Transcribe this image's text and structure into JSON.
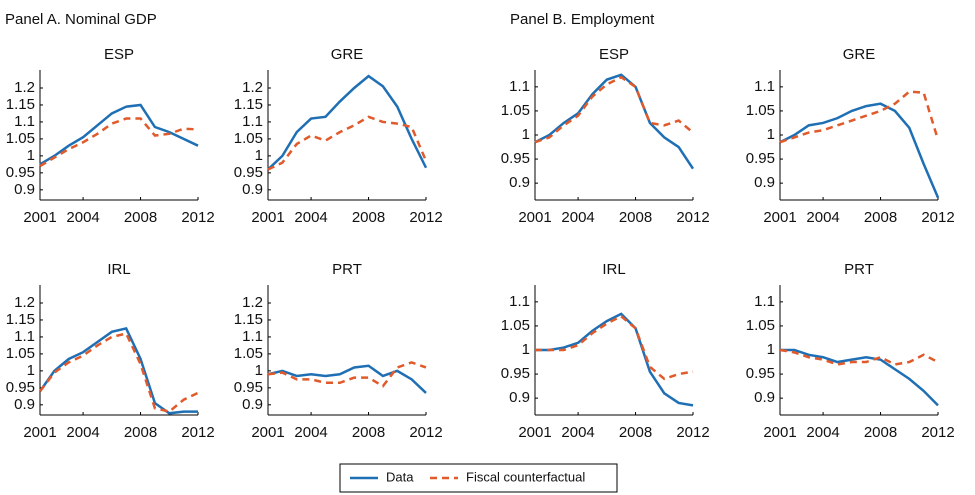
{
  "panels": [
    {
      "title": "Panel A. Nominal GDP"
    },
    {
      "title": "Panel B. Employment"
    }
  ],
  "chart_data": [
    {
      "type": "line",
      "title": "ESP",
      "x": [
        2001,
        2002,
        2003,
        2004,
        2005,
        2006,
        2007,
        2008,
        2009,
        2010,
        2011,
        2012
      ],
      "xlim": [
        2001,
        2012
      ],
      "xticks": [
        2001,
        2004,
        2008,
        2012
      ],
      "ylim": [
        0.87,
        1.253
      ],
      "yticks": [
        0.9,
        0.95,
        1,
        1.05,
        1.1,
        1.15,
        1.2
      ],
      "series": [
        {
          "name": "Data",
          "color": "#1f6fb4",
          "values": [
            0.975,
            1.0,
            1.03,
            1.055,
            1.09,
            1.125,
            1.145,
            1.15,
            1.085,
            1.07,
            1.05,
            1.03
          ]
        },
        {
          "name": "Fiscal counterfactual",
          "color": "#e05a2b",
          "dashed": true,
          "values": [
            0.97,
            0.995,
            1.02,
            1.04,
            1.065,
            1.095,
            1.11,
            1.11,
            1.06,
            1.065,
            1.08,
            1.078
          ]
        }
      ]
    },
    {
      "type": "line",
      "title": "GRE",
      "x": [
        2001,
        2002,
        2003,
        2004,
        2005,
        2006,
        2007,
        2008,
        2009,
        2010,
        2011,
        2012
      ],
      "xlim": [
        2001,
        2012
      ],
      "xticks": [
        2001,
        2004,
        2008,
        2012
      ],
      "ylim": [
        0.87,
        1.253
      ],
      "yticks": [
        0.9,
        0.95,
        1,
        1.05,
        1.1,
        1.15,
        1.2
      ],
      "series": [
        {
          "name": "Data",
          "color": "#1f6fb4",
          "values": [
            0.96,
            1.0,
            1.07,
            1.11,
            1.115,
            1.16,
            1.2,
            1.235,
            1.205,
            1.145,
            1.05,
            0.965
          ]
        },
        {
          "name": "Fiscal counterfactual",
          "color": "#e05a2b",
          "dashed": true,
          "values": [
            0.96,
            0.98,
            1.035,
            1.06,
            1.045,
            1.07,
            1.09,
            1.115,
            1.1,
            1.095,
            1.085,
            0.985
          ]
        }
      ]
    },
    {
      "type": "line",
      "title": "IRL",
      "x": [
        2001,
        2002,
        2003,
        2004,
        2005,
        2006,
        2007,
        2008,
        2009,
        2010,
        2011,
        2012
      ],
      "xlim": [
        2001,
        2012
      ],
      "xticks": [
        2001,
        2004,
        2008,
        2012
      ],
      "ylim": [
        0.87,
        1.253
      ],
      "yticks": [
        0.9,
        0.95,
        1,
        1.05,
        1.1,
        1.15,
        1.2
      ],
      "series": [
        {
          "name": "Data",
          "color": "#1f6fb4",
          "values": [
            0.94,
            1.0,
            1.035,
            1.055,
            1.085,
            1.115,
            1.125,
            1.035,
            0.905,
            0.875,
            0.88,
            0.88
          ]
        },
        {
          "name": "Fiscal counterfactual",
          "color": "#e05a2b",
          "dashed": true,
          "values": [
            0.94,
            0.995,
            1.025,
            1.045,
            1.075,
            1.1,
            1.11,
            1.02,
            0.89,
            0.88,
            0.915,
            0.935
          ]
        }
      ]
    },
    {
      "type": "line",
      "title": "PRT",
      "x": [
        2001,
        2002,
        2003,
        2004,
        2005,
        2006,
        2007,
        2008,
        2009,
        2010,
        2011,
        2012
      ],
      "xlim": [
        2001,
        2012
      ],
      "xticks": [
        2001,
        2004,
        2008,
        2012
      ],
      "ylim": [
        0.87,
        1.253
      ],
      "yticks": [
        0.9,
        0.95,
        1,
        1.05,
        1.1,
        1.15,
        1.2
      ],
      "series": [
        {
          "name": "Data",
          "color": "#1f6fb4",
          "values": [
            0.99,
            1.0,
            0.985,
            0.99,
            0.985,
            0.99,
            1.01,
            1.015,
            0.985,
            1.0,
            0.975,
            0.935
          ]
        },
        {
          "name": "Fiscal counterfactual",
          "color": "#e05a2b",
          "dashed": true,
          "values": [
            0.99,
            0.995,
            0.975,
            0.975,
            0.965,
            0.965,
            0.98,
            0.98,
            0.955,
            1.01,
            1.025,
            1.01
          ]
        }
      ]
    },
    {
      "type": "line",
      "title": "ESP",
      "x": [
        2001,
        2002,
        2003,
        2004,
        2005,
        2006,
        2007,
        2008,
        2009,
        2010,
        2011,
        2012
      ],
      "xlim": [
        2001,
        2012
      ],
      "xticks": [
        2001,
        2004,
        2008,
        2012
      ],
      "ylim": [
        0.865,
        1.135
      ],
      "yticks": [
        0.9,
        0.95,
        1,
        1.05,
        1.1
      ],
      "series": [
        {
          "name": "Data",
          "color": "#1f6fb4",
          "values": [
            0.985,
            1.0,
            1.025,
            1.045,
            1.085,
            1.115,
            1.125,
            1.1,
            1.025,
            0.995,
            0.975,
            0.93
          ]
        },
        {
          "name": "Fiscal counterfactual",
          "color": "#e05a2b",
          "dashed": true,
          "values": [
            0.985,
            0.995,
            1.02,
            1.04,
            1.08,
            1.105,
            1.12,
            1.1,
            1.025,
            1.02,
            1.03,
            1.005
          ]
        }
      ]
    },
    {
      "type": "line",
      "title": "GRE",
      "x": [
        2001,
        2002,
        2003,
        2004,
        2005,
        2006,
        2007,
        2008,
        2009,
        2010,
        2011,
        2012
      ],
      "xlim": [
        2001,
        2012
      ],
      "xticks": [
        2001,
        2004,
        2008,
        2012
      ],
      "ylim": [
        0.865,
        1.135
      ],
      "yticks": [
        0.9,
        0.95,
        1,
        1.05,
        1.1
      ],
      "series": [
        {
          "name": "Data",
          "color": "#1f6fb4",
          "values": [
            0.985,
            1.0,
            1.02,
            1.025,
            1.035,
            1.05,
            1.06,
            1.065,
            1.05,
            1.015,
            0.94,
            0.87
          ]
        },
        {
          "name": "Fiscal counterfactual",
          "color": "#e05a2b",
          "dashed": true,
          "values": [
            0.985,
            0.995,
            1.005,
            1.01,
            1.02,
            1.03,
            1.04,
            1.05,
            1.065,
            1.09,
            1.088,
            0.99
          ]
        }
      ]
    },
    {
      "type": "line",
      "title": "IRL",
      "x": [
        2001,
        2002,
        2003,
        2004,
        2005,
        2006,
        2007,
        2008,
        2009,
        2010,
        2011,
        2012
      ],
      "xlim": [
        2001,
        2012
      ],
      "xticks": [
        2001,
        2004,
        2008,
        2012
      ],
      "ylim": [
        0.865,
        1.135
      ],
      "yticks": [
        0.9,
        0.95,
        1,
        1.05,
        1.1
      ],
      "series": [
        {
          "name": "Data",
          "color": "#1f6fb4",
          "values": [
            1.0,
            1.0,
            1.005,
            1.015,
            1.04,
            1.06,
            1.075,
            1.045,
            0.955,
            0.91,
            0.89,
            0.885
          ]
        },
        {
          "name": "Fiscal counterfactual",
          "color": "#e05a2b",
          "dashed": true,
          "values": [
            1.0,
            1.0,
            1.0,
            1.01,
            1.035,
            1.055,
            1.07,
            1.045,
            0.965,
            0.94,
            0.95,
            0.955
          ]
        }
      ]
    },
    {
      "type": "line",
      "title": "PRT",
      "x": [
        2001,
        2002,
        2003,
        2004,
        2005,
        2006,
        2007,
        2008,
        2009,
        2010,
        2011,
        2012
      ],
      "xlim": [
        2001,
        2012
      ],
      "xticks": [
        2001,
        2004,
        2008,
        2012
      ],
      "ylim": [
        0.865,
        1.135
      ],
      "yticks": [
        0.9,
        0.95,
        1,
        1.05,
        1.1
      ],
      "series": [
        {
          "name": "Data",
          "color": "#1f6fb4",
          "values": [
            1.0,
            1.0,
            0.99,
            0.985,
            0.975,
            0.98,
            0.985,
            0.98,
            0.96,
            0.94,
            0.915,
            0.885
          ]
        },
        {
          "name": "Fiscal counterfactual",
          "color": "#e05a2b",
          "dashed": true,
          "values": [
            1.0,
            0.995,
            0.985,
            0.98,
            0.97,
            0.975,
            0.975,
            0.985,
            0.97,
            0.975,
            0.99,
            0.975
          ]
        }
      ]
    }
  ]
}
